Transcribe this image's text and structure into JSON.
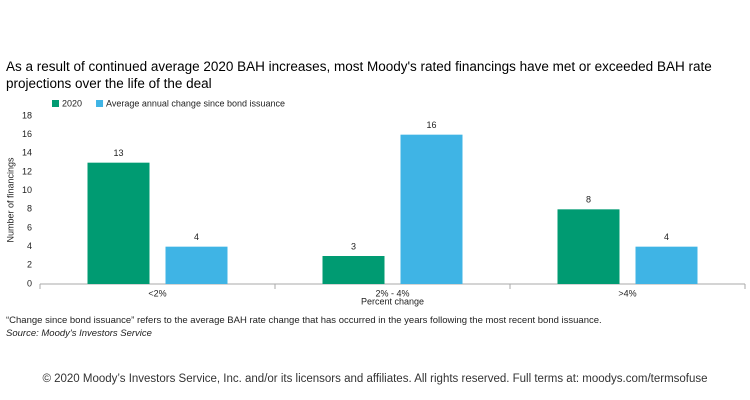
{
  "chart_data": {
    "type": "bar",
    "title": "As a result of continued average 2020 BAH increases, most Moody's rated financings have met or exceeded BAH rate projections over the life of the deal",
    "categories": [
      "<2%",
      "2% - 4%",
      ">4%"
    ],
    "series": [
      {
        "name": "2020",
        "color": "#009b72",
        "values": [
          13,
          3,
          8
        ]
      },
      {
        "name": "Average annual change since bond issuance",
        "color": "#3fb4e5",
        "values": [
          4,
          16,
          4
        ]
      }
    ],
    "x_label": "Percent change",
    "y_label": "Number of financings",
    "ylim": [
      0,
      18
    ],
    "yticks": [
      0,
      2,
      4,
      6,
      8,
      10,
      12,
      14,
      16,
      18
    ],
    "grid": false,
    "legend": "top-left"
  },
  "footnote": "“Change since bond issuance” refers to the average BAH rate change that has occurred in the years following the most recent bond issuance.",
  "source": "Source: Moody's Investors Service",
  "copyright": "© 2020 Moody’s Investors Service, Inc. and/or its licensors and affiliates. All rights reserved. Full terms at: moodys.com/termsofuse"
}
